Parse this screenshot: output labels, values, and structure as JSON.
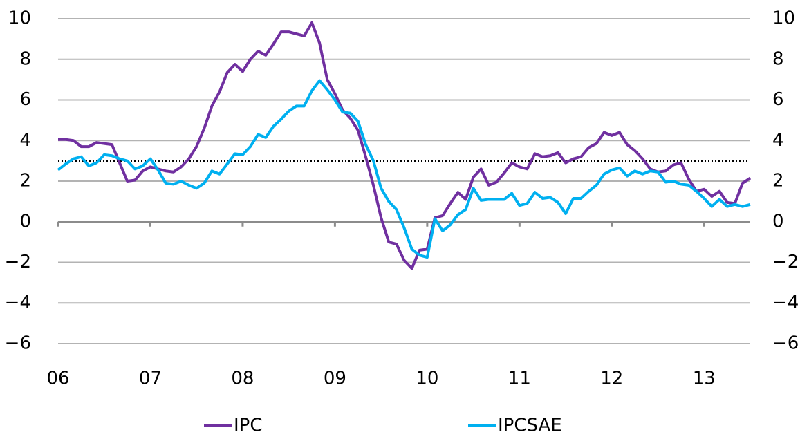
{
  "chart_data": {
    "type": "line",
    "categories": [
      "06",
      null,
      null,
      null,
      null,
      null,
      null,
      null,
      null,
      null,
      null,
      null,
      "07",
      null,
      null,
      null,
      null,
      null,
      null,
      null,
      null,
      null,
      null,
      null,
      "08",
      null,
      null,
      null,
      null,
      null,
      null,
      null,
      null,
      null,
      null,
      null,
      "09",
      null,
      null,
      null,
      null,
      null,
      null,
      null,
      null,
      null,
      null,
      null,
      "10",
      null,
      null,
      null,
      null,
      null,
      null,
      null,
      null,
      null,
      null,
      null,
      "11",
      null,
      null,
      null,
      null,
      null,
      null,
      null,
      null,
      null,
      null,
      null,
      "12",
      null,
      null,
      null,
      null,
      null,
      null,
      null,
      null,
      null,
      null,
      null,
      "13",
      null,
      null,
      null,
      null,
      null,
      null
    ],
    "series": [
      {
        "name": "IPC",
        "color": "#7030a0",
        "values": [
          4.05,
          4.05,
          4.0,
          3.7,
          3.7,
          3.9,
          3.85,
          3.8,
          2.9,
          2.0,
          2.05,
          2.5,
          2.7,
          2.6,
          2.5,
          2.45,
          2.7,
          3.1,
          3.7,
          4.6,
          5.7,
          6.4,
          7.35,
          7.75,
          7.4,
          8.0,
          8.4,
          8.2,
          8.75,
          9.35,
          9.35,
          9.25,
          9.15,
          9.8,
          8.8,
          7.0,
          6.3,
          5.5,
          5.1,
          4.5,
          3.2,
          1.8,
          0.2,
          -1.0,
          -1.1,
          -1.9,
          -2.3,
          -1.4,
          -1.35,
          0.2,
          0.3,
          0.9,
          1.45,
          1.1,
          2.2,
          2.6,
          1.8,
          1.95,
          2.4,
          2.9,
          2.7,
          2.6,
          3.35,
          3.2,
          3.25,
          3.4,
          2.9,
          3.1,
          3.2,
          3.65,
          3.85,
          4.4,
          4.25,
          4.4,
          3.8,
          3.5,
          3.1,
          2.6,
          2.45,
          2.5,
          2.8,
          2.9,
          2.1,
          1.5,
          1.6,
          1.25,
          1.5,
          0.95,
          0.9,
          1.9,
          2.15
        ]
      },
      {
        "name": "IPCSAE",
        "color": "#00b0f0",
        "values": [
          2.55,
          2.85,
          3.1,
          3.2,
          2.75,
          2.9,
          3.3,
          3.25,
          3.1,
          3.0,
          2.6,
          2.75,
          3.1,
          2.55,
          1.9,
          1.85,
          2.0,
          1.8,
          1.65,
          1.9,
          2.5,
          2.35,
          2.85,
          3.35,
          3.3,
          3.7,
          4.3,
          4.15,
          4.7,
          5.05,
          5.45,
          5.7,
          5.7,
          6.45,
          6.95,
          6.5,
          6.0,
          5.4,
          5.35,
          4.95,
          3.8,
          3.0,
          1.65,
          1.0,
          0.6,
          -0.3,
          -1.35,
          -1.65,
          -1.75,
          0.15,
          -0.45,
          -0.15,
          0.35,
          0.6,
          1.65,
          1.05,
          1.1,
          1.1,
          1.1,
          1.4,
          0.8,
          0.9,
          1.45,
          1.15,
          1.2,
          0.95,
          0.4,
          1.15,
          1.15,
          1.5,
          1.8,
          2.35,
          2.55,
          2.65,
          2.25,
          2.5,
          2.35,
          2.5,
          2.45,
          1.95,
          2.0,
          1.85,
          1.8,
          1.5,
          1.15,
          0.75,
          1.1,
          0.75,
          0.85,
          0.75,
          0.85
        ]
      }
    ],
    "ylim": [
      -6,
      10
    ],
    "yticks": [
      {
        "value": -6,
        "label": "−6"
      },
      {
        "value": -4,
        "label": "−4"
      },
      {
        "value": -2,
        "label": "−2"
      },
      0,
      2,
      4,
      6,
      8,
      10
    ],
    "y2lim": [
      -6,
      10
    ],
    "y2ticks": [
      {
        "value": -6,
        "label": "−6"
      },
      {
        "value": -4,
        "label": "−4"
      },
      {
        "value": -2,
        "label": "−2"
      },
      0,
      2,
      4,
      6,
      8,
      10
    ],
    "reference_line": 3,
    "grid": true
  }
}
